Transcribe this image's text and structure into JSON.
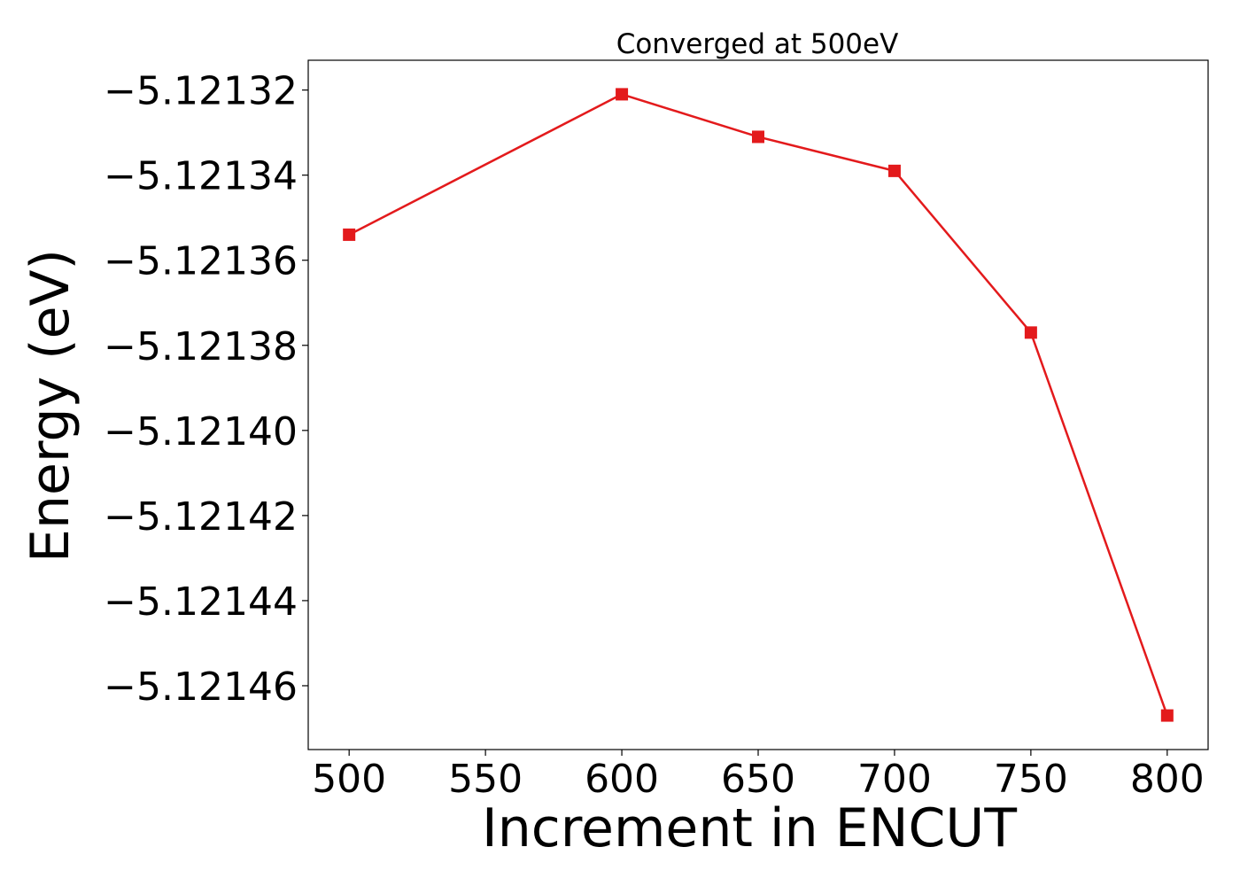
{
  "chart_data": {
    "type": "line",
    "title": "Converged at 500eV",
    "xlabel": "Increment in ENCUT",
    "ylabel": "Energy (eV)",
    "x": [
      500,
      600,
      650,
      700,
      750,
      800
    ],
    "series": [
      {
        "values": [
          -5.121354,
          -5.121321,
          -5.121331,
          -5.121339,
          -5.121377,
          -5.121467
        ],
        "color": "#e31a1c",
        "marker": "square"
      }
    ],
    "xlim": [
      485,
      815
    ],
    "ylim": [
      -5.121475,
      -5.121313
    ],
    "xticks": [
      500,
      550,
      600,
      650,
      700,
      750,
      800
    ],
    "xtick_labels": [
      "500",
      "550",
      "600",
      "650",
      "700",
      "750",
      "800"
    ],
    "yticks": [
      -5.12132,
      -5.12134,
      -5.12136,
      -5.12138,
      -5.1214,
      -5.12142,
      -5.12144,
      -5.12146
    ],
    "ytick_labels": [
      "−5.12132",
      "−5.12134",
      "−5.12136",
      "−5.12138",
      "−5.12140",
      "−5.12142",
      "−5.12144",
      "−5.12146"
    ],
    "grid": false,
    "legend": "none"
  }
}
